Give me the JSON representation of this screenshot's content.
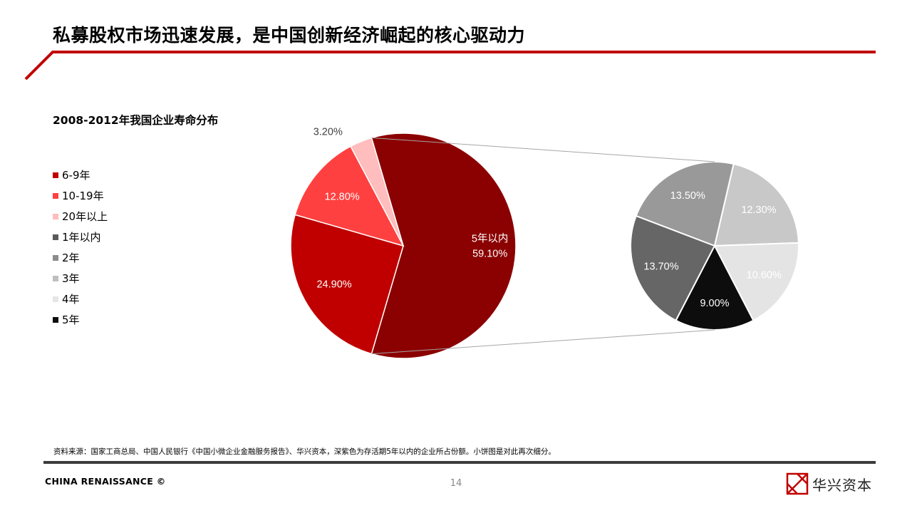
{
  "header": {
    "title": "私募股权市场迅速发展，是中国创新经济崛起的核心驱动力",
    "accent_color": "#c00000"
  },
  "chart_data": {
    "type": "pie",
    "title": "2008-2012年我国企业寿命分布",
    "legend": [
      {
        "label": "6-9年",
        "color": "#c00000"
      },
      {
        "label": "10-19年",
        "color": "#ff4040"
      },
      {
        "label": "20年以上",
        "color": "#ffbdbd"
      },
      {
        "label": "1年以内",
        "color": "#5a5a5a"
      },
      {
        "label": "2年",
        "color": "#8c8c8c"
      },
      {
        "label": "3年",
        "color": "#bfbfbf"
      },
      {
        "label": "4年",
        "color": "#e6e6e6"
      },
      {
        "label": "5年",
        "color": "#0d0d0d"
      }
    ],
    "main_pie": [
      {
        "label": "5年以内",
        "value": 59.1,
        "display": "59.10%",
        "color": "#8b0000"
      },
      {
        "label": "6-9年",
        "value": 24.9,
        "display": "24.90%",
        "color": "#c00000"
      },
      {
        "label": "10-19年",
        "value": 12.8,
        "display": "12.80%",
        "color": "#ff4040"
      },
      {
        "label": "20年以上",
        "value": 3.2,
        "display": "3.20%",
        "color": "#ffbdbd"
      }
    ],
    "sub_pie": [
      {
        "label": "1年以内",
        "value": 13.7,
        "display": "13.70%",
        "color": "#666666"
      },
      {
        "label": "2年",
        "value": 13.5,
        "display": "13.50%",
        "color": "#999999"
      },
      {
        "label": "3年",
        "value": 12.3,
        "display": "12.30%",
        "color": "#c8c8c8"
      },
      {
        "label": "4年",
        "value": 10.6,
        "display": "10.60%",
        "color": "#e4e4e4"
      },
      {
        "label": "5年",
        "value": 9.0,
        "display": "9.00%",
        "color": "#0d0d0d"
      }
    ]
  },
  "footnote": "资料来源：国家工商总局、中国人民银行《中国小微企业金融服务报告》、华兴资本，深紫色为存活期5年以内的企业所占份额。小饼图是对此再次细分。",
  "footer": {
    "brand": "CHINA RENAISSANCE ©",
    "page_number": "14",
    "logo_text": "华兴资本"
  }
}
